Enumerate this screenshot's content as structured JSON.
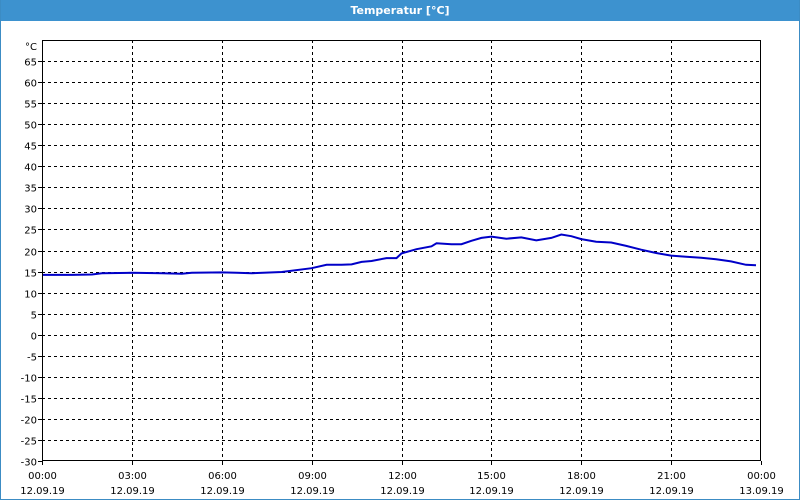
{
  "window": {
    "title": "Temperatur [°C]"
  },
  "chart_data": {
    "type": "line",
    "title": "Temperatur [°C]",
    "ylabel": "°C",
    "ylim": [
      -30,
      70
    ],
    "yticks": [
      -30,
      -25,
      -20,
      -15,
      -10,
      -5,
      0,
      5,
      10,
      15,
      20,
      25,
      30,
      35,
      40,
      45,
      50,
      55,
      60,
      65
    ],
    "xlim": [
      "12.09.19 00:00",
      "13.09.19 00:00"
    ],
    "xticks": [
      {
        "time": "00:00",
        "date": "12.09.19"
      },
      {
        "time": "03:00",
        "date": "12.09.19"
      },
      {
        "time": "06:00",
        "date": "12.09.19"
      },
      {
        "time": "09:00",
        "date": "12.09.19"
      },
      {
        "time": "12:00",
        "date": "12.09.19"
      },
      {
        "time": "15:00",
        "date": "12.09.19"
      },
      {
        "time": "18:00",
        "date": "12.09.19"
      },
      {
        "time": "21:00",
        "date": "12.09.19"
      },
      {
        "time": "00:00",
        "date": "13.09.19"
      }
    ],
    "grid": true,
    "color": "#0000c8",
    "series": [
      {
        "x": [
          "00:00",
          "01:00",
          "01:40",
          "02:00",
          "03:00",
          "04:00",
          "04:40",
          "05:00",
          "06:00",
          "06:30",
          "07:00",
          "08:00",
          "09:00",
          "09:30",
          "10:00",
          "10:20",
          "10:40",
          "11:00",
          "11:30",
          "11:50",
          "12:00",
          "12:30",
          "13:00",
          "13:10",
          "13:40",
          "14:00",
          "14:20",
          "14:40",
          "15:00",
          "15:30",
          "16:00",
          "16:30",
          "17:00",
          "17:20",
          "17:40",
          "18:00",
          "18:30",
          "19:00",
          "19:30",
          "20:00",
          "20:30",
          "21:00",
          "21:30",
          "22:00",
          "22:30",
          "23:00",
          "23:30",
          "23:50"
        ],
        "values": [
          14.2,
          14.2,
          14.3,
          14.6,
          14.7,
          14.6,
          14.5,
          14.7,
          14.8,
          14.7,
          14.6,
          14.9,
          15.8,
          16.6,
          16.6,
          16.7,
          17.3,
          17.5,
          18.2,
          18.2,
          19.3,
          20.3,
          21.0,
          21.7,
          21.5,
          21.5,
          22.3,
          23.0,
          23.3,
          22.8,
          23.1,
          22.4,
          23.0,
          23.8,
          23.4,
          22.7,
          22.1,
          21.9,
          21.1,
          20.2,
          19.4,
          18.8,
          18.5,
          18.3,
          17.9,
          17.4,
          16.6,
          16.5
        ]
      }
    ]
  }
}
